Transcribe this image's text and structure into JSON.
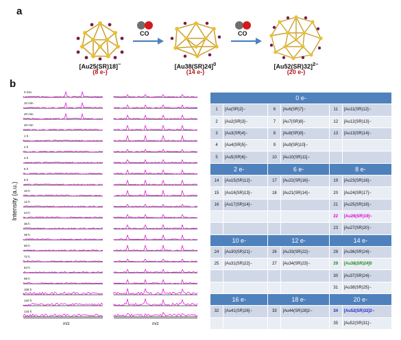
{
  "panel_a_label": "a",
  "panel_b_label": "b",
  "clusters": [
    {
      "formula": "[Au25(SR)18]",
      "charge": "−",
      "electrons": "(8 e-)"
    },
    {
      "formula": "[Au38(SR)24]",
      "charge": "0",
      "electrons": "(14 e-)"
    },
    {
      "formula": "[Au52(SR)32]",
      "charge": "2−",
      "electrons": "(20 e-)"
    }
  ],
  "arrow_labels": [
    "CO",
    "CO"
  ],
  "y_axis_label": "Intensity (a.u.)",
  "x_axis_labels": [
    "m/z",
    "m/z"
  ],
  "time_labels": [
    "0 min",
    "10 min",
    "20 min",
    "40 min",
    "1 h",
    "2 h",
    "4 h",
    "6 h",
    "8 h",
    "10 h",
    "12 h",
    "24 h",
    "36 h",
    "48 h",
    "60 h",
    "72 h",
    "84 h",
    "96 h",
    "108 h",
    "120 h",
    "144 h"
  ],
  "table": {
    "sections": [
      {
        "header": [
          "0 e-"
        ],
        "rows": [
          [
            "1",
            "[Au(SR)2]−",
            "6",
            "[Au6(SR)7]−",
            "11",
            "[Au11(SR)12]−"
          ],
          [
            "2",
            "[Au2(SR)3]−",
            "7",
            "[Au7(SR)8]−",
            "12",
            "[Au12(SR)13]−"
          ],
          [
            "3",
            "[Au3(SR)4]−",
            "8",
            "[Au8(SR)9]−",
            "13",
            "[Au13(SR)14]−"
          ],
          [
            "4",
            "[Au4(SR)5]−",
            "9",
            "[Au9(SR)10]−",
            "",
            ""
          ],
          [
            "5",
            "[Au5(SR)6]−",
            "10",
            "[Au10(SR)11]−",
            "",
            ""
          ]
        ]
      },
      {
        "header": [
          "2 e-",
          "6 e-",
          "8 e-"
        ],
        "rows": [
          [
            "14",
            "[Au15(SR)12]−",
            "17",
            "[Au22(SR)16]−",
            "19",
            "[Au23(SR)16]−"
          ],
          [
            "15",
            "[Au16(SR)13]−",
            "18",
            "[Au21(SR)14]−",
            "20",
            "[Au24(SR)17]−"
          ],
          [
            "16",
            "[Au17(SR)14]−",
            "",
            "",
            "21",
            "[Au25(SR)18]−"
          ],
          [
            "",
            "",
            "",
            "",
            "22",
            "[Au26(SR)19]−"
          ],
          [
            "",
            "",
            "",
            "",
            "23",
            "[Au27(SR)20]−"
          ]
        ]
      },
      {
        "header": [
          "10 e-",
          "12 e-",
          "14 e-"
        ],
        "rows": [
          [
            "24",
            "[Au30(SR)21]−",
            "26",
            "[Au33(SR)22]−",
            "28",
            "[Au36(SR)24]−"
          ],
          [
            "25",
            "[Au31(SR)22]−",
            "27",
            "[Au34(SR)23]−",
            "29",
            "[Au38(SR)24]0"
          ],
          [
            "",
            "",
            "",
            "",
            "30",
            "[Au37(SR)24]−"
          ],
          [
            "",
            "",
            "",
            "",
            "31",
            "[Au38(SR)25]−"
          ]
        ]
      },
      {
        "header": [
          "16 e-",
          "18 e-",
          "20 e-"
        ],
        "rows": [
          [
            "32",
            "[Au41(SR)26]−",
            "33",
            "[Au44(SR)28]2−",
            "34",
            "[Au52(SR)32]2−"
          ],
          [
            "",
            "",
            "",
            "",
            "35",
            "[Au52(SR)31]−"
          ]
        ]
      }
    ]
  },
  "colors": {
    "header_blue": "#4f81bd",
    "row_light": "#e9edf4",
    "row_dark": "#d0d8e8",
    "trace": "#e100d6",
    "electrons_red": "#b8141e",
    "highlight_pink": "#e100d6",
    "highlight_green": "#1b8a1b",
    "highlight_blue": "#1a28c8"
  },
  "icons": [
    "gold-cluster-icon",
    "co-molecule-icon",
    "right-arrow-icon"
  ]
}
